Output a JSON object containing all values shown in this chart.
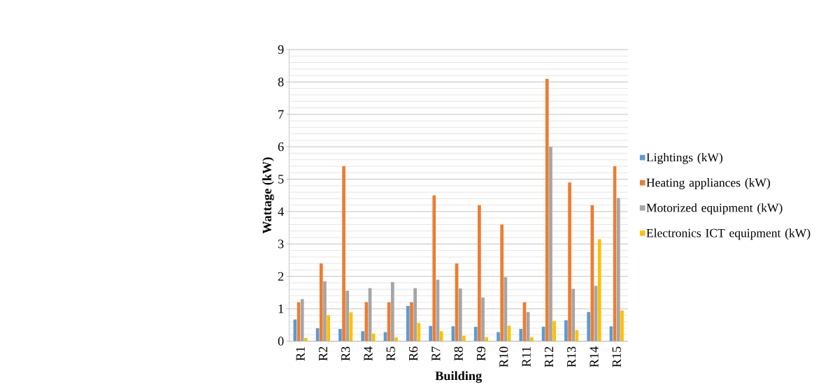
{
  "chart_data": {
    "type": "bar",
    "xlabel": "Building",
    "ylabel": "Wattage (kW)",
    "categories": [
      "R1",
      "R2",
      "R3",
      "R4",
      "R5",
      "R6",
      "R7",
      "R8",
      "R9",
      "R10",
      "R11",
      "R12",
      "R13",
      "R14",
      "R15"
    ],
    "series": [
      {
        "name": "Lightings (kW)",
        "color": "#5b9bd5",
        "values": [
          0.67,
          0.4,
          0.38,
          0.31,
          0.28,
          1.09,
          0.47,
          0.46,
          0.44,
          0.28,
          0.38,
          0.45,
          0.65,
          0.9,
          0.46
        ]
      },
      {
        "name": "Heating appliances (kW)",
        "color": "#ed7d31",
        "values": [
          1.2,
          2.4,
          5.4,
          1.2,
          1.2,
          1.2,
          4.5,
          2.4,
          4.2,
          3.6,
          1.2,
          8.1,
          4.9,
          4.2,
          5.4
        ]
      },
      {
        "name": "Motorized equipment (kW)",
        "color": "#a5a5a5",
        "values": [
          1.3,
          1.85,
          1.56,
          1.64,
          1.82,
          1.64,
          1.9,
          1.63,
          1.35,
          1.98,
          0.9,
          6.0,
          1.62,
          1.71,
          4.42
        ]
      },
      {
        "name": "Electronics ICT equipment (kW)",
        "color": "#ffc000",
        "values": [
          0.1,
          0.8,
          0.89,
          0.23,
          0.12,
          0.56,
          0.31,
          0.17,
          0.12,
          0.48,
          0.12,
          0.62,
          0.34,
          3.15,
          0.95
        ]
      }
    ],
    "ylim": [
      0,
      9
    ],
    "yticks": [
      0,
      1,
      2,
      3,
      4,
      5,
      6,
      7,
      8,
      9
    ],
    "grid": "y",
    "legend": "right"
  }
}
